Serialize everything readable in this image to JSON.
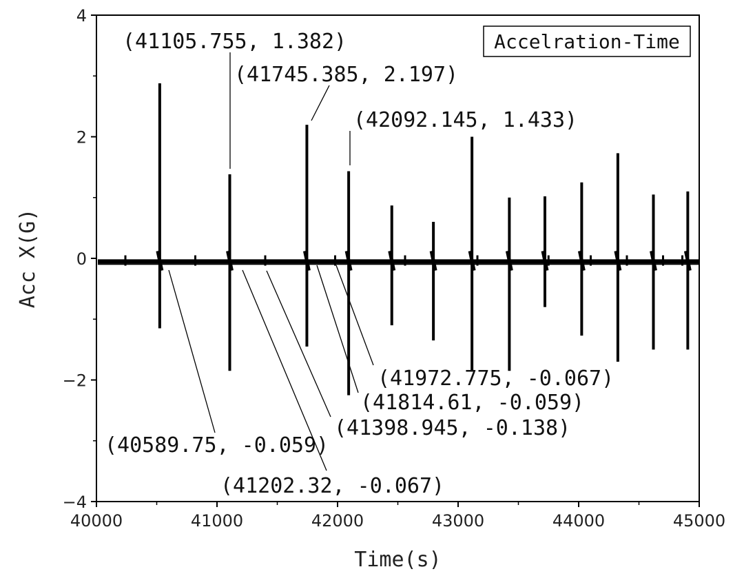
{
  "chart_data": {
    "type": "line",
    "title": "",
    "legend": "Accelration-Time",
    "legend_position": "top-right",
    "xlabel": "Time(s)",
    "ylabel": "Acc X(G)",
    "xlim": [
      40000,
      45000
    ],
    "ylim": [
      -4,
      4
    ],
    "x_ticks": [
      "40000",
      "41000",
      "42000",
      "43000",
      "44000",
      "45000"
    ],
    "y_ticks": [
      "4",
      "2",
      "0",
      "−2",
      "−4"
    ],
    "baseline": -0.05,
    "spikes": [
      {
        "x": 40525,
        "max": 2.88,
        "min": -1.15
      },
      {
        "x": 41105.755,
        "max": 1.382,
        "min": -1.85
      },
      {
        "x": 41745.385,
        "max": 2.197,
        "min": -1.45
      },
      {
        "x": 42092.145,
        "max": 1.433,
        "min": -2.25
      },
      {
        "x": 42450,
        "max": 0.87,
        "min": -1.1
      },
      {
        "x": 42795,
        "max": 0.6,
        "min": -1.35
      },
      {
        "x": 43115,
        "max": 2.0,
        "min": -1.85
      },
      {
        "x": 43425,
        "max": 1.0,
        "min": -1.85
      },
      {
        "x": 43720,
        "max": 1.02,
        "min": -0.8
      },
      {
        "x": 44025,
        "max": 1.25,
        "min": -1.27
      },
      {
        "x": 44325,
        "max": 1.73,
        "min": -1.7
      },
      {
        "x": 44620,
        "max": 1.05,
        "min": -1.5
      },
      {
        "x": 44905,
        "max": 1.1,
        "min": -1.5
      }
    ],
    "small_spikes": [
      {
        "x": 40240,
        "max": 0.05,
        "min": -0.12
      },
      {
        "x": 40820,
        "max": 0.05,
        "min": -0.12
      },
      {
        "x": 41400,
        "max": 0.05,
        "min": -0.12
      },
      {
        "x": 41980,
        "max": 0.05,
        "min": -0.12
      },
      {
        "x": 42560,
        "max": 0.05,
        "min": -0.12
      },
      {
        "x": 43160,
        "max": 0.05,
        "min": -0.12
      },
      {
        "x": 43750,
        "max": 0.05,
        "min": -0.12
      },
      {
        "x": 44100,
        "max": 0.05,
        "min": -0.12
      },
      {
        "x": 44400,
        "max": 0.05,
        "min": -0.12
      },
      {
        "x": 44700,
        "max": 0.05,
        "min": -0.12
      },
      {
        "x": 44860,
        "max": 0.05,
        "min": -0.12
      }
    ],
    "annotations": [
      {
        "text": "(41105.755, 1.382)",
        "x": 41105.755,
        "y": 1.382
      },
      {
        "text": "(41745.385, 2.197)",
        "x": 41745.385,
        "y": 2.197
      },
      {
        "text": "(42092.145, 1.433)",
        "x": 42092.145,
        "y": 1.433
      },
      {
        "text": "(41972.775, -0.067)",
        "x": 41972.775,
        "y": -0.067
      },
      {
        "text": "(41814.61, -0.059)",
        "x": 41814.61,
        "y": -0.059
      },
      {
        "text": "(41398.945, -0.138)",
        "x": 41398.945,
        "y": -0.138
      },
      {
        "text": "(40589.75, -0.059)",
        "x": 40589.75,
        "y": -0.059
      },
      {
        "text": "(41202.32, -0.067)",
        "x": 41202.32,
        "y": -0.067
      }
    ]
  }
}
